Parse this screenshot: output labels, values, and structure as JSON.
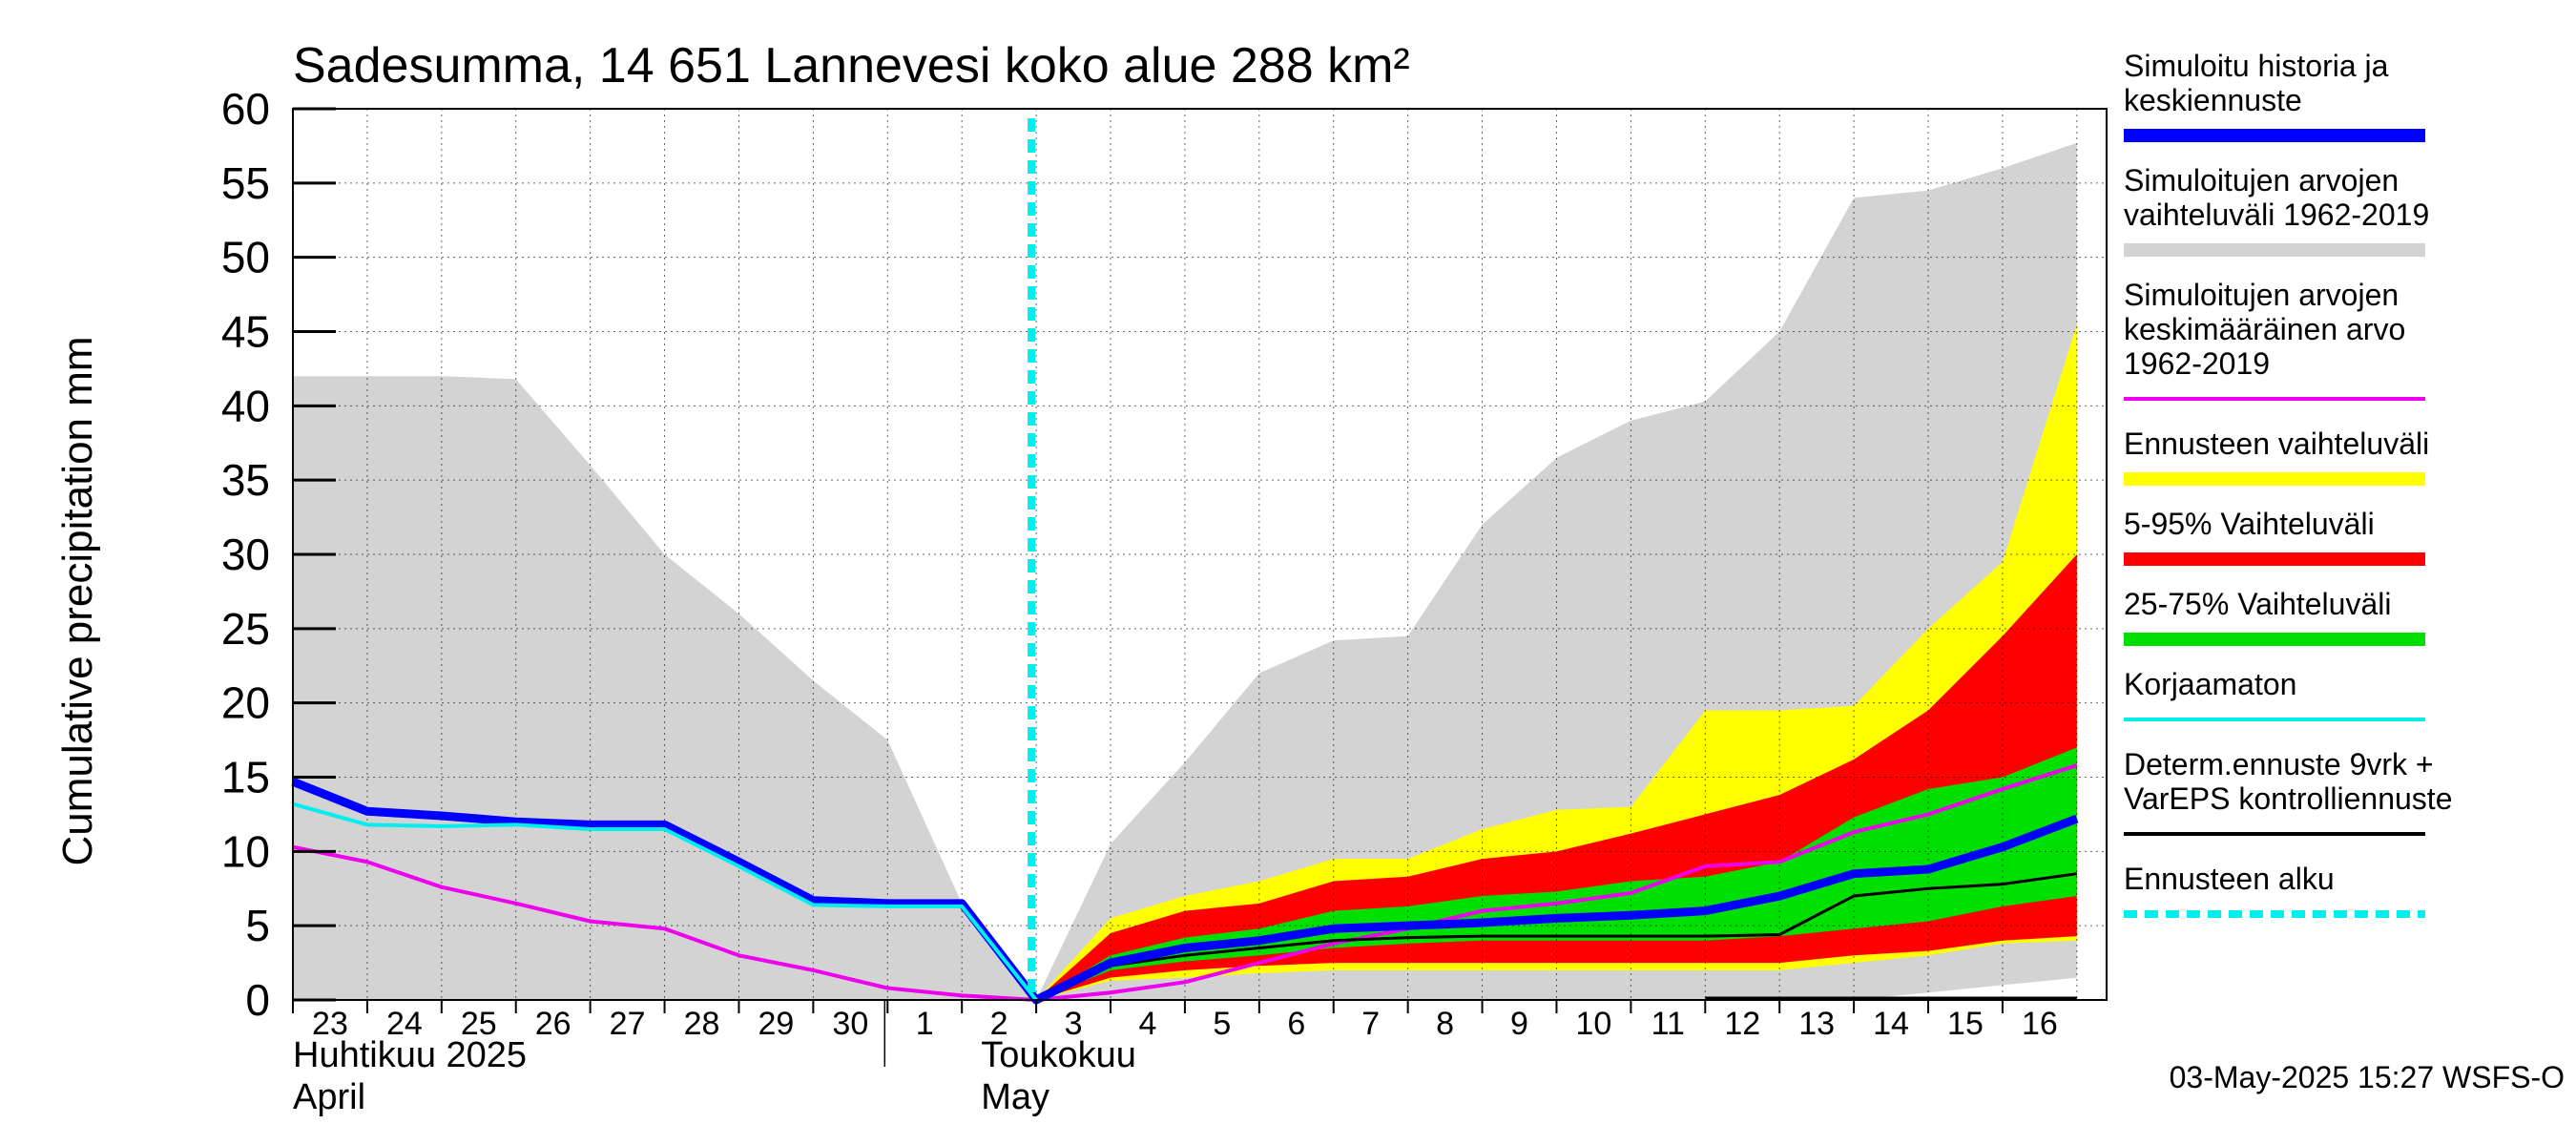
{
  "chart_data": {
    "type": "area",
    "title": "Sadesumma, 14 651 Lannevesi koko alue 288 km²",
    "ylabel": "Cumulative precipitation   mm",
    "xlabel": "",
    "ylim": [
      0,
      60
    ],
    "yticks": [
      0,
      5,
      10,
      15,
      20,
      25,
      30,
      35,
      40,
      45,
      50,
      55,
      60
    ],
    "x_day_index": [
      0,
      1,
      2,
      3,
      4,
      5,
      6,
      7,
      8,
      9,
      10,
      11,
      12,
      13,
      14,
      15,
      16,
      17,
      18,
      19,
      20,
      21,
      22,
      23,
      24
    ],
    "x_tick_labels": [
      "23",
      "24",
      "25",
      "26",
      "27",
      "28",
      "29",
      "30",
      "1",
      "2",
      "3",
      "4",
      "5",
      "6",
      "7",
      "8",
      "9",
      "10",
      "11",
      "12",
      "13",
      "14",
      "15",
      "16"
    ],
    "month_labels": [
      {
        "fi": "Huhtikuu  2025",
        "en": "April",
        "at_day": 0
      },
      {
        "fi": "Toukokuu",
        "en": "May",
        "at_day": 9
      }
    ],
    "forecast_start_day": 10,
    "series": [
      {
        "name": "Simuloitujen arvojen vaihteluväli 1962-2019",
        "kind": "band",
        "color": "#d3d3d3",
        "x": [
          0,
          1,
          2,
          3,
          4,
          5,
          6,
          7,
          8,
          9,
          10,
          11,
          12,
          13,
          14,
          15,
          16,
          17,
          18,
          19,
          20,
          21,
          22,
          23,
          24
        ],
        "upper": [
          42,
          42,
          42,
          41.8,
          36,
          30,
          26,
          21.5,
          17.5,
          6.5,
          0,
          10.5,
          16,
          22,
          24.2,
          24.5,
          32,
          36.5,
          39,
          40.3,
          45,
          54,
          54.5,
          56,
          57.7
        ],
        "lower": [
          0,
          0,
          0,
          0,
          0,
          0,
          0,
          0,
          0,
          0,
          0,
          0,
          0,
          0,
          0,
          0,
          0,
          0,
          0,
          0,
          0,
          0,
          0.5,
          1,
          1.5
        ]
      },
      {
        "name": "Ennusteen vaihteluväli",
        "kind": "band",
        "color": "#ffff00",
        "x": [
          10,
          11,
          12,
          13,
          14,
          15,
          16,
          17,
          18,
          19,
          20,
          21,
          22,
          23,
          24
        ],
        "upper": [
          0,
          5.5,
          7,
          8,
          9.5,
          9.5,
          11.5,
          12.8,
          13,
          19.5,
          19.5,
          19.8,
          25,
          29.5,
          45.5
        ],
        "lower": [
          0,
          1.3,
          1.5,
          1.8,
          2,
          2,
          2,
          2,
          2,
          2,
          2,
          2.5,
          3,
          3.8,
          4
        ]
      },
      {
        "name": "5-95% Vaihteluväli",
        "kind": "band",
        "color": "#ff0000",
        "x": [
          10,
          11,
          12,
          13,
          14,
          15,
          16,
          17,
          18,
          19,
          20,
          21,
          22,
          23,
          24
        ],
        "upper": [
          0,
          4.5,
          6,
          6.5,
          8,
          8.3,
          9.5,
          10,
          11.2,
          12.5,
          13.8,
          16.2,
          19.5,
          24.5,
          30
        ],
        "lower": [
          0,
          1.5,
          2,
          2.3,
          2.5,
          2.5,
          2.5,
          2.5,
          2.5,
          2.5,
          2.5,
          3,
          3.3,
          4,
          4.3
        ]
      },
      {
        "name": "25-75% Vaihteluväli",
        "kind": "band",
        "color": "#00e000",
        "x": [
          10,
          11,
          12,
          13,
          14,
          15,
          16,
          17,
          18,
          19,
          20,
          21,
          22,
          23,
          24
        ],
        "upper": [
          0,
          3,
          4.2,
          4.8,
          6,
          6.3,
          7,
          7.3,
          8,
          8.3,
          9.3,
          12.3,
          14.2,
          15,
          17
        ],
        "lower": [
          0,
          2,
          2.6,
          3,
          3.5,
          3.8,
          4,
          4,
          4,
          4,
          4.3,
          4.8,
          5.3,
          6.3,
          7
        ]
      },
      {
        "name": "Simuloitujen arvojen keskimääräinen arvo 1962-2019",
        "kind": "line",
        "color": "#ee00ee",
        "x": [
          0,
          1,
          2,
          3,
          4,
          5,
          6,
          7,
          8,
          9,
          10,
          11,
          12,
          13,
          14,
          15,
          16,
          17,
          18,
          19,
          20,
          21,
          22,
          23,
          24
        ],
        "values": [
          10.3,
          9.3,
          7.6,
          6.5,
          5.3,
          4.8,
          3,
          2,
          0.8,
          0.3,
          0,
          0.5,
          1.2,
          2.5,
          3.8,
          4.8,
          6,
          6.5,
          7.2,
          9,
          9.3,
          11.3,
          12.5,
          14.2,
          15.8
        ]
      },
      {
        "name": "Korjaamaton",
        "kind": "line",
        "color": "#00eeee",
        "x": [
          0,
          1,
          2,
          3,
          4,
          5,
          6,
          7,
          8,
          9,
          10
        ],
        "values": [
          13.2,
          11.8,
          11.7,
          11.8,
          11.5,
          11.5,
          9,
          6.4,
          6.3,
          6.3,
          0
        ]
      },
      {
        "name": "Simuloitu historia ja keskiennuste",
        "kind": "line",
        "color": "#0000ff",
        "x": [
          0,
          1,
          2,
          3,
          4,
          5,
          6,
          7,
          8,
          9,
          10,
          11,
          12,
          13,
          14,
          15,
          16,
          17,
          18,
          19,
          20,
          21,
          22,
          23,
          24
        ],
        "values": [
          14.7,
          12.7,
          12.4,
          12,
          11.8,
          11.8,
          9.3,
          6.7,
          6.5,
          6.5,
          0,
          2.5,
          3.5,
          4,
          4.8,
          5,
          5.2,
          5.5,
          5.7,
          6,
          7,
          8.5,
          8.8,
          10.3,
          12.2
        ]
      },
      {
        "name": "Determ.ennuste 9vrk + VarEPS kontrolliennuste",
        "kind": "line",
        "color": "#000000",
        "x": [
          10,
          11,
          12,
          13,
          14,
          15,
          16,
          17,
          18,
          19,
          20,
          21,
          22,
          23,
          24
        ],
        "values": [
          0,
          2.3,
          3,
          3.5,
          4,
          4.2,
          4.3,
          4.3,
          4.3,
          4.3,
          4.4,
          7,
          7.5,
          7.8,
          8.5
        ]
      }
    ],
    "legend": [
      {
        "label": "Simuloitu historia ja\nkeskiennuste",
        "color": "#0000ff",
        "style": "thick"
      },
      {
        "label": "Simuloitujen arvojen\nvaihteluväli 1962-2019",
        "color": "#d3d3d3",
        "style": "thick"
      },
      {
        "label": "Simuloitujen arvojen\nkeskimääräinen arvo\n   1962-2019",
        "color": "#ee00ee",
        "style": "thin"
      },
      {
        "label": "Ennusteen vaihteluväli",
        "color": "#ffff00",
        "style": "thick"
      },
      {
        "label": "5-95% Vaihteluväli",
        "color": "#ff0000",
        "style": "thick"
      },
      {
        "label": "25-75% Vaihteluväli",
        "color": "#00e000",
        "style": "thick"
      },
      {
        "label": "Korjaamaton",
        "color": "#00eeee",
        "style": "thin"
      },
      {
        "label": "Determ.ennuste 9vrk +\nVarEPS kontrolliennuste",
        "color": "#000000",
        "style": "thin"
      },
      {
        "label": "Ennusteen alku",
        "color": "#00eeee",
        "style": "dashed"
      }
    ],
    "legend_position": "right",
    "grid": true,
    "footer_timestamp": "03-May-2025 15:27 WSFS-O"
  }
}
